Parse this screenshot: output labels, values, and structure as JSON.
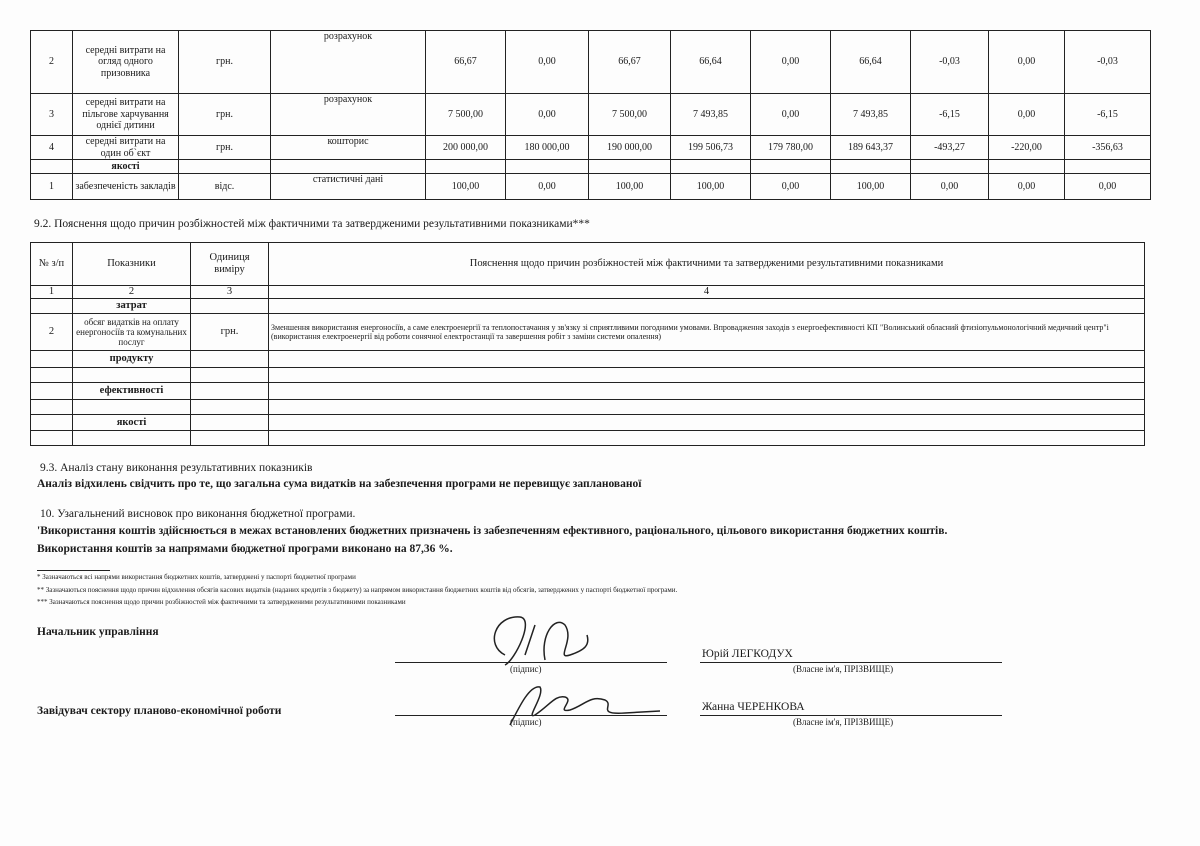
{
  "table1": {
    "rows": [
      {
        "n": "2",
        "name": "середні витрати на огляд одного призовника",
        "unit": "грн.",
        "source": "розрахунок",
        "v": [
          "66,67",
          "0,00",
          "66,67",
          "66,64",
          "0,00",
          "66,64",
          "-0,03",
          "0,00",
          "-0,03"
        ]
      },
      {
        "n": "3",
        "name": "середні витрати на пільгове харчування однієї дитини",
        "unit": "грн.",
        "source": "розрахунок",
        "v": [
          "7 500,00",
          "0,00",
          "7 500,00",
          "7 493,85",
          "0,00",
          "7 493,85",
          "-6,15",
          "0,00",
          "-6,15"
        ]
      },
      {
        "n": "4",
        "name": "середні витрати на один об`єкт",
        "unit": "грн.",
        "source": "кошторис",
        "v": [
          "200 000,00",
          "180 000,00",
          "190 000,00",
          "199 506,73",
          "179 780,00",
          "189 643,37",
          "-493,27",
          "-220,00",
          "-356,63"
        ]
      },
      {
        "n": "",
        "name": "якості",
        "unit": "",
        "source": "",
        "v": [
          "",
          "",
          "",
          "",
          "",
          "",
          "",
          "",
          ""
        ]
      },
      {
        "n": "1",
        "name": "забезпеченість закладів",
        "unit": "відс.",
        "source": "статистичні дані",
        "v": [
          "100,00",
          "0,00",
          "100,00",
          "100,00",
          "0,00",
          "100,00",
          "0,00",
          "0,00",
          "0,00"
        ]
      }
    ]
  },
  "section92": {
    "title": "9.2. Пояснення щодо причин розбіжностей між фактичними та затвердженими результативними показниками***",
    "headers": [
      "№ з/п",
      "Показники",
      "Одиниця виміру",
      "Пояснення щодо причин розбіжностей між фактичними та затвердженими результативними показниками"
    ],
    "numbers": [
      "1",
      "2",
      "3",
      "4"
    ],
    "rows": [
      {
        "n": "",
        "name": "затрат",
        "unit": "",
        "text": ""
      },
      {
        "n": "2",
        "name": "обсяг видатків на оплату енергоносіїв та комунальних послуг",
        "unit": "грн.",
        "text": "Зменшення використання енергоносіїв, а саме електроенергії та теплопостачання у зв'язку  зі сприятливими  погодними умовами. Впровадження заходів з  енергоефективності  КП \"Волинський обласний фтизіопульмонологічний медичний центр\"і (використання електроенергії від роботи сонячної електростанції та завершення робіт з заміни системи опалення)"
      },
      {
        "n": "",
        "name": "продукту",
        "unit": "",
        "text": ""
      },
      {
        "n": "",
        "name": "",
        "unit": "",
        "text": ""
      },
      {
        "n": "",
        "name": "ефективності",
        "unit": "",
        "text": ""
      },
      {
        "n": "",
        "name": "",
        "unit": "",
        "text": ""
      },
      {
        "n": "",
        "name": "якості",
        "unit": "",
        "text": ""
      },
      {
        "n": "",
        "name": "",
        "unit": "",
        "text": ""
      }
    ]
  },
  "section93": {
    "title": "9.3. Аналіз стану виконання результативних показників",
    "text": "Аналіз відхилень свідчить про те, що загальна сума видатків на забезпечення програми не перевищує запланованої"
  },
  "section10": {
    "title": "10. Узагальнений висновок про виконання бюджетної програми.",
    "line1": "'Використання коштів здійснюється в межах встановлених бюджетних призначень із забезпеченням ефективного, раціонального, цільового використання бюджетних коштів.",
    "line2": "Використання коштів за напрямами бюджетної програми виконано на 87,36 %."
  },
  "footnotes": [
    "* Зазначаються всі напрями використання бюджетних коштів, затверджені у паспорті бюджетної програми",
    "** Зазначаються пояснення щодо причин відхилення обсягів касових видатків (наданих кредитів з бюджету) за напрямом використання бюджетних коштів від обсягів, затверджених у паспорті бюджетної програми.",
    "*** Зазначаються пояснення щодо причин розбіжностей між фактичними та затвердженими результативними показниками"
  ],
  "signatures": [
    {
      "role": "Начальник управління",
      "sign_label": "(підпис)",
      "name": "Юрій ЛЕГКОДУХ",
      "name_label": "(Власне ім'я, ПРІЗВИЩЕ)"
    },
    {
      "role": "Завідувач сектору планово-економічної роботи",
      "sign_label": "(підпис)",
      "name": "Жанна ЧЕРЕНКОВА",
      "name_label": "(Власне ім'я, ПРІЗВИЩЕ)"
    }
  ]
}
